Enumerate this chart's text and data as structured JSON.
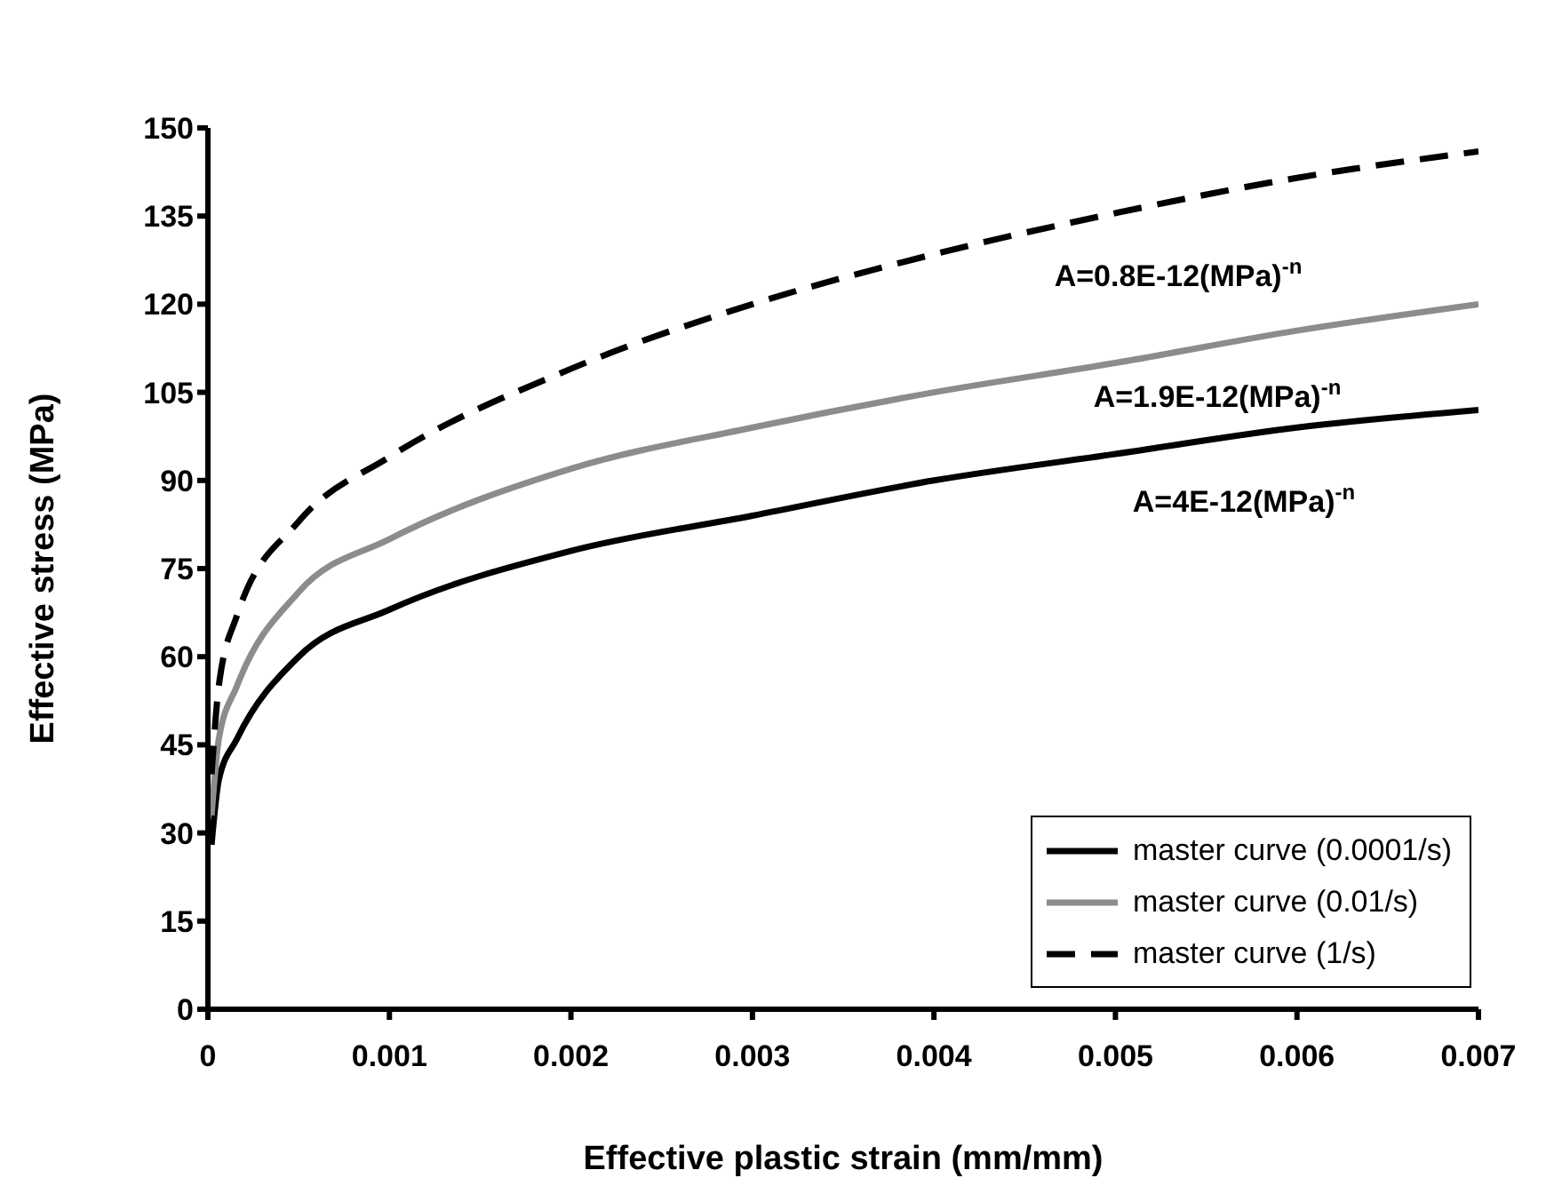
{
  "chart_data": {
    "type": "line",
    "xlabel": "Effective plastic strain (mm/mm)",
    "ylabel": "Effective stress (MPa)",
    "x": [
      2e-05,
      6e-05,
      0.00016,
      0.0005,
      0.001,
      0.002,
      0.003,
      0.004,
      0.005,
      0.006,
      0.007
    ],
    "series": [
      {
        "name": "master curve (0.0001/s)",
        "color": "#000000",
        "line_style": "solid",
        "values": [
          28,
          39,
          46,
          60,
          68,
          78,
          84,
          90,
          94.5,
          99,
          102
        ]
      },
      {
        "name": "master curve (0.01/s)",
        "color": "#8c8c8c",
        "line_style": "solid",
        "values": [
          33,
          46,
          55,
          71,
          80,
          92,
          99,
          105,
          110,
          115.5,
          120
        ]
      },
      {
        "name": "master curve (1/s)",
        "color": "#000000",
        "line_style": "dashed",
        "values": [
          40,
          55,
          67,
          83,
          94,
          109,
          120,
          128.5,
          135.5,
          141.5,
          146
        ]
      }
    ],
    "xlim": [
      0,
      0.007
    ],
    "xticks": [
      0,
      0.001,
      0.002,
      0.003,
      0.004,
      0.005,
      0.006,
      0.007
    ],
    "ylim": [
      0,
      150
    ],
    "yticks": [
      0,
      15,
      30,
      45,
      60,
      75,
      90,
      105,
      120,
      135,
      150
    ],
    "grid": false,
    "legend": "bottom right",
    "marker": "none",
    "annotations": [
      "A=0.8E-12(MPa)$^{-n}$",
      "A=1.9E-12(MPa)$^{-n}$",
      "A=4E-12(MPa)$^{-n}$"
    ]
  }
}
